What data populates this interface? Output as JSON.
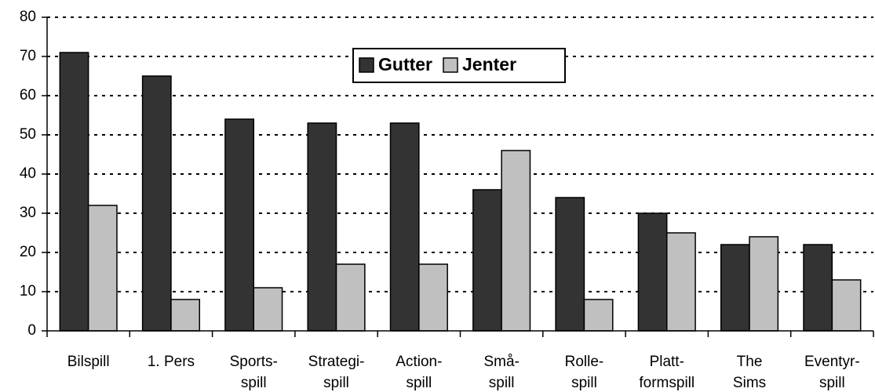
{
  "chart_data": {
    "type": "bar",
    "categories": [
      [
        "Bilspill"
      ],
      [
        "1. Pers"
      ],
      [
        "Sports-",
        "spill"
      ],
      [
        "Strategi-",
        "spill"
      ],
      [
        "Action-",
        "spill"
      ],
      [
        "Små-",
        "spill"
      ],
      [
        "Rolle-",
        "spill"
      ],
      [
        "Platt-",
        "formspill"
      ],
      [
        "The",
        "Sims"
      ],
      [
        "Eventyr-",
        "spill"
      ]
    ],
    "series": [
      {
        "name": "Gutter",
        "color": "#333333",
        "values": [
          71,
          65,
          54,
          53,
          53,
          36,
          34,
          30,
          22,
          22
        ]
      },
      {
        "name": "Jenter",
        "color": "#c0c0c0",
        "values": [
          32,
          8,
          11,
          17,
          17,
          46,
          8,
          25,
          24,
          13
        ]
      }
    ],
    "ylim": [
      0,
      80
    ],
    "yticks": [
      0,
      10,
      20,
      30,
      40,
      50,
      60,
      70,
      80
    ],
    "grid": true,
    "legend": "top"
  }
}
